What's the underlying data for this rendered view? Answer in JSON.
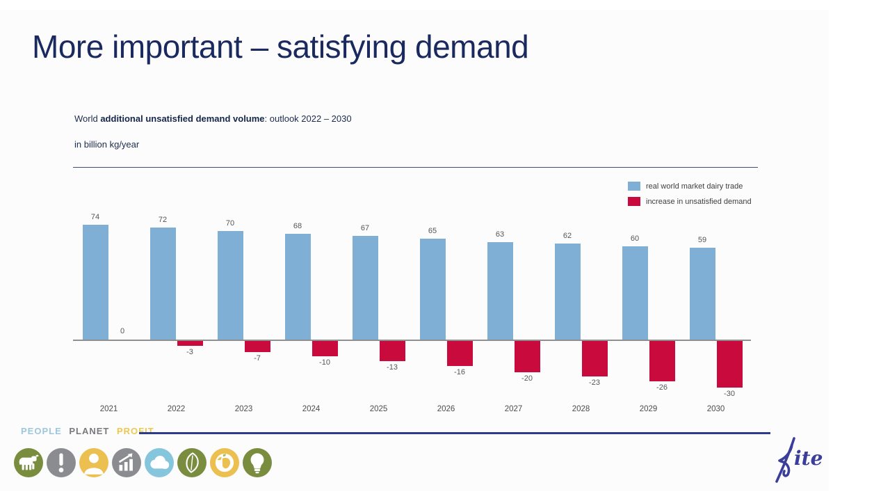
{
  "slide": {
    "title": "More important – satisfying demand",
    "subtitle_prefix": "World ",
    "subtitle_bold": "additional unsatisfied demand volume",
    "subtitle_suffix": ": outlook 2022 – 2030",
    "unit_label": "in billion kg/year"
  },
  "chart_data": {
    "type": "bar",
    "title": "World additional unsatisfied demand volume: outlook 2022 – 2030",
    "ylabel": "in billion kg/year",
    "categories": [
      "2021",
      "2022",
      "2023",
      "2024",
      "2025",
      "2026",
      "2027",
      "2028",
      "2029",
      "2030"
    ],
    "series": [
      {
        "name": "real world market dairy trade",
        "color": "#7fafd4",
        "values": [
          74,
          72,
          70,
          68,
          67,
          65,
          63,
          62,
          60,
          59
        ]
      },
      {
        "name": "increase in unsatisfied demand",
        "color": "#c80a3d",
        "values": [
          0,
          -3,
          -7,
          -10,
          -13,
          -16,
          -20,
          -23,
          -26,
          -30
        ]
      }
    ],
    "ylim": [
      -35,
      80
    ],
    "grid": false,
    "legend_position": "top-right",
    "data_labels": true
  },
  "footer": {
    "tagline": [
      {
        "text": "PEOPLE",
        "color": "#9ec6dc"
      },
      {
        "text": "PLANET",
        "color": "#77797c"
      },
      {
        "text": "PROFIT",
        "color": "#edc84f"
      }
    ],
    "icons": [
      {
        "name": "cow-icon",
        "color": "#7a8c3e"
      },
      {
        "name": "exclamation-icon",
        "color": "#8a8c8f"
      },
      {
        "name": "person-icon",
        "color": "#ecc050"
      },
      {
        "name": "growth-chart-icon",
        "color": "#8a8c8f"
      },
      {
        "name": "cloud-icon",
        "color": "#85c6dd"
      },
      {
        "name": "leaf-icon",
        "color": "#7a8c3e"
      },
      {
        "name": "globe-icon",
        "color": "#ecc050"
      },
      {
        "name": "lightbulb-icon",
        "color": "#7a8c3e"
      }
    ],
    "logo_text": "Kite"
  },
  "colors": {
    "title": "#1b2a5e",
    "bar_label": "#555555",
    "axis": "#8f8f8f",
    "separator": "#3c4c7c",
    "footer_line": "#2e3a8c",
    "logo": "#3a3d99"
  }
}
